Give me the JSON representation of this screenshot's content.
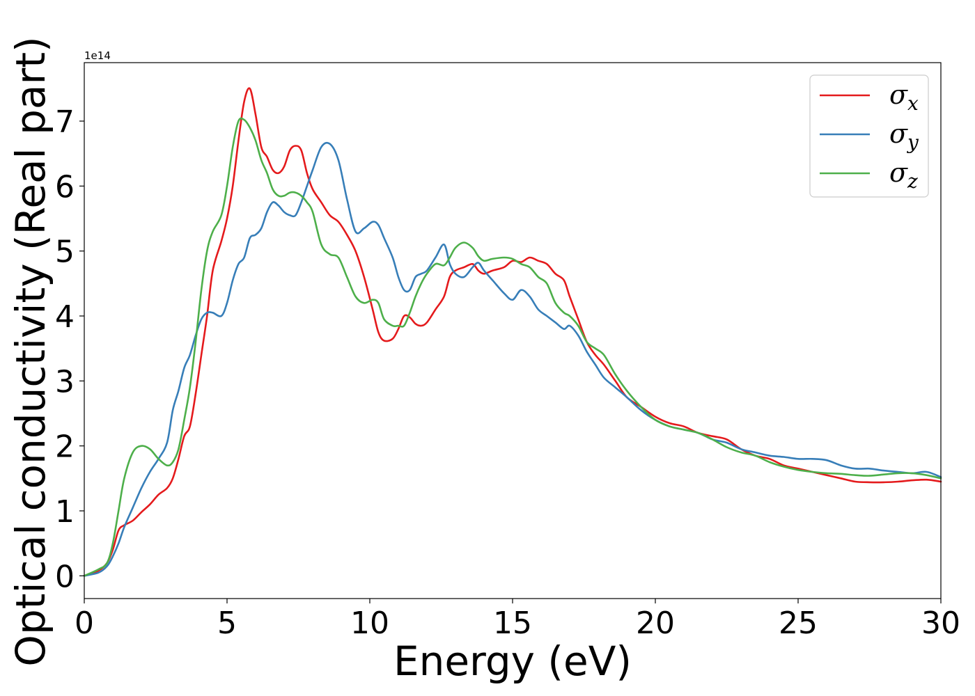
{
  "chart_data": {
    "type": "line",
    "title": "",
    "xlabel": "Energy (eV)",
    "ylabel": "Optical conductivity (Real part)",
    "y_offset_text": "1e14",
    "xlim": [
      0,
      30
    ],
    "ylim": [
      -0.35,
      7.9
    ],
    "y_multiplier": 100000000000000.0,
    "x_ticks": [
      0,
      5,
      10,
      15,
      20,
      25,
      30
    ],
    "x_tick_labels": [
      "0",
      "5",
      "10",
      "15",
      "20",
      "25",
      "30"
    ],
    "y_ticks": [
      0,
      1,
      2,
      3,
      4,
      5,
      6,
      7
    ],
    "y_tick_labels": [
      "0",
      "1",
      "2",
      "3",
      "4",
      "5",
      "6",
      "7"
    ],
    "grid": false,
    "legend_position": "top-right",
    "series": [
      {
        "name": "σx",
        "legend_base": "σ",
        "legend_sub": "x",
        "color": "#e41a1c",
        "x": [
          0,
          0.5,
          0.8,
          1.0,
          1.2,
          1.4,
          1.7,
          2.0,
          2.3,
          2.6,
          2.9,
          3.1,
          3.3,
          3.5,
          3.7,
          3.9,
          4.1,
          4.3,
          4.5,
          4.8,
          5.0,
          5.2,
          5.4,
          5.6,
          5.8,
          6.0,
          6.2,
          6.4,
          6.6,
          6.8,
          7.0,
          7.2,
          7.4,
          7.6,
          7.8,
          8.0,
          8.3,
          8.6,
          8.9,
          9.2,
          9.5,
          9.8,
          10.1,
          10.3,
          10.5,
          10.8,
          11.0,
          11.2,
          11.4,
          11.6,
          11.8,
          12.0,
          12.3,
          12.6,
          12.8,
          13.0,
          13.3,
          13.6,
          13.8,
          14.0,
          14.3,
          14.7,
          15.0,
          15.3,
          15.6,
          15.9,
          16.2,
          16.5,
          16.8,
          17.0,
          17.3,
          17.6,
          17.9,
          18.2,
          18.6,
          19.0,
          19.5,
          20.0,
          20.5,
          21.0,
          21.5,
          22.0,
          22.5,
          23.0,
          23.5,
          24.0,
          24.5,
          25.0,
          25.5,
          26.0,
          26.5,
          27.0,
          27.5,
          28.0,
          28.5,
          29.0,
          29.5,
          30.0
        ],
        "y": [
          0,
          0.08,
          0.2,
          0.4,
          0.7,
          0.78,
          0.85,
          0.98,
          1.1,
          1.25,
          1.35,
          1.5,
          1.8,
          2.15,
          2.3,
          2.8,
          3.4,
          4.0,
          4.7,
          5.15,
          5.5,
          6.0,
          6.7,
          7.3,
          7.5,
          7.1,
          6.6,
          6.45,
          6.25,
          6.2,
          6.3,
          6.55,
          6.62,
          6.55,
          6.2,
          5.95,
          5.75,
          5.55,
          5.45,
          5.25,
          5.0,
          4.6,
          4.1,
          3.75,
          3.62,
          3.65,
          3.8,
          4.0,
          3.98,
          3.88,
          3.85,
          3.9,
          4.1,
          4.3,
          4.6,
          4.7,
          4.75,
          4.8,
          4.7,
          4.65,
          4.7,
          4.75,
          4.85,
          4.83,
          4.9,
          4.85,
          4.8,
          4.65,
          4.55,
          4.3,
          3.95,
          3.6,
          3.4,
          3.25,
          3.0,
          2.75,
          2.6,
          2.45,
          2.35,
          2.3,
          2.2,
          2.15,
          2.1,
          1.95,
          1.85,
          1.8,
          1.7,
          1.65,
          1.6,
          1.55,
          1.5,
          1.45,
          1.44,
          1.44,
          1.45,
          1.47,
          1.48,
          1.45
        ]
      },
      {
        "name": "σy",
        "legend_base": "σ",
        "legend_sub": "y",
        "color": "#377eb8",
        "x": [
          0,
          0.5,
          0.8,
          1.0,
          1.2,
          1.4,
          1.7,
          2.0,
          2.3,
          2.6,
          2.9,
          3.1,
          3.3,
          3.5,
          3.7,
          3.9,
          4.1,
          4.3,
          4.5,
          4.8,
          5.0,
          5.2,
          5.4,
          5.6,
          5.8,
          6.0,
          6.2,
          6.4,
          6.6,
          6.8,
          7.0,
          7.2,
          7.4,
          7.6,
          7.8,
          8.0,
          8.3,
          8.6,
          8.9,
          9.2,
          9.5,
          9.8,
          10.1,
          10.3,
          10.5,
          10.8,
          11.0,
          11.2,
          11.4,
          11.6,
          11.8,
          12.0,
          12.3,
          12.6,
          12.8,
          13.0,
          13.3,
          13.6,
          13.8,
          14.0,
          14.3,
          14.7,
          15.0,
          15.3,
          15.6,
          15.9,
          16.2,
          16.5,
          16.8,
          17.0,
          17.3,
          17.6,
          17.9,
          18.2,
          18.6,
          19.0,
          19.5,
          20.0,
          20.5,
          21.0,
          21.5,
          22.0,
          22.5,
          23.0,
          23.5,
          24.0,
          24.5,
          25.0,
          25.5,
          26.0,
          26.5,
          27.0,
          27.5,
          28.0,
          28.5,
          29.0,
          29.5,
          30.0
        ],
        "y": [
          0,
          0.05,
          0.15,
          0.3,
          0.5,
          0.75,
          1.05,
          1.35,
          1.6,
          1.8,
          2.05,
          2.55,
          2.85,
          3.2,
          3.4,
          3.7,
          3.95,
          4.05,
          4.05,
          4.0,
          4.2,
          4.55,
          4.8,
          4.9,
          5.2,
          5.25,
          5.35,
          5.6,
          5.75,
          5.7,
          5.6,
          5.55,
          5.55,
          5.75,
          6.0,
          6.25,
          6.6,
          6.65,
          6.4,
          5.8,
          5.3,
          5.35,
          5.45,
          5.4,
          5.2,
          4.9,
          4.6,
          4.4,
          4.4,
          4.6,
          4.65,
          4.7,
          4.9,
          5.1,
          4.8,
          4.65,
          4.6,
          4.75,
          4.82,
          4.7,
          4.55,
          4.35,
          4.25,
          4.4,
          4.3,
          4.1,
          4.0,
          3.9,
          3.8,
          3.85,
          3.7,
          3.45,
          3.25,
          3.05,
          2.9,
          2.75,
          2.55,
          2.4,
          2.3,
          2.25,
          2.2,
          2.1,
          2.05,
          1.95,
          1.9,
          1.85,
          1.83,
          1.8,
          1.8,
          1.78,
          1.7,
          1.65,
          1.65,
          1.62,
          1.6,
          1.58,
          1.6,
          1.52
        ]
      },
      {
        "name": "σz",
        "legend_base": "σ",
        "legend_sub": "z",
        "color": "#4daf4a",
        "x": [
          0,
          0.5,
          0.8,
          1.0,
          1.2,
          1.4,
          1.7,
          2.0,
          2.3,
          2.6,
          2.9,
          3.1,
          3.3,
          3.5,
          3.7,
          3.9,
          4.1,
          4.3,
          4.5,
          4.8,
          5.0,
          5.2,
          5.4,
          5.6,
          5.8,
          6.0,
          6.2,
          6.4,
          6.6,
          6.8,
          7.0,
          7.2,
          7.4,
          7.6,
          7.8,
          8.0,
          8.3,
          8.6,
          8.9,
          9.2,
          9.5,
          9.8,
          10.1,
          10.3,
          10.5,
          10.8,
          11.0,
          11.2,
          11.4,
          11.6,
          11.8,
          12.0,
          12.3,
          12.6,
          12.8,
          13.0,
          13.3,
          13.6,
          13.8,
          14.0,
          14.3,
          14.7,
          15.0,
          15.3,
          15.6,
          15.9,
          16.2,
          16.5,
          16.8,
          17.0,
          17.3,
          17.6,
          17.9,
          18.2,
          18.6,
          19.0,
          19.5,
          20.0,
          20.5,
          21.0,
          21.5,
          22.0,
          22.5,
          23.0,
          23.5,
          24.0,
          24.5,
          25.0,
          25.5,
          26.0,
          26.5,
          27.0,
          27.5,
          28.0,
          28.5,
          29.0,
          29.5,
          30.0
        ],
        "y": [
          0,
          0.1,
          0.2,
          0.5,
          1.0,
          1.5,
          1.9,
          2.0,
          1.95,
          1.8,
          1.7,
          1.75,
          1.95,
          2.4,
          2.9,
          3.6,
          4.4,
          5.0,
          5.3,
          5.55,
          6.0,
          6.6,
          7.0,
          7.02,
          6.9,
          6.7,
          6.4,
          6.2,
          5.95,
          5.85,
          5.85,
          5.9,
          5.9,
          5.85,
          5.75,
          5.6,
          5.1,
          4.95,
          4.9,
          4.6,
          4.3,
          4.2,
          4.25,
          4.2,
          3.95,
          3.85,
          3.85,
          3.85,
          4.05,
          4.3,
          4.5,
          4.65,
          4.8,
          4.78,
          4.9,
          5.05,
          5.13,
          5.05,
          4.92,
          4.85,
          4.88,
          4.9,
          4.88,
          4.8,
          4.75,
          4.6,
          4.5,
          4.2,
          4.05,
          4.0,
          3.85,
          3.6,
          3.5,
          3.4,
          3.1,
          2.85,
          2.6,
          2.4,
          2.3,
          2.25,
          2.2,
          2.1,
          1.98,
          1.9,
          1.85,
          1.75,
          1.68,
          1.63,
          1.6,
          1.58,
          1.57,
          1.55,
          1.54,
          1.56,
          1.58,
          1.58,
          1.55,
          1.5
        ]
      }
    ]
  }
}
